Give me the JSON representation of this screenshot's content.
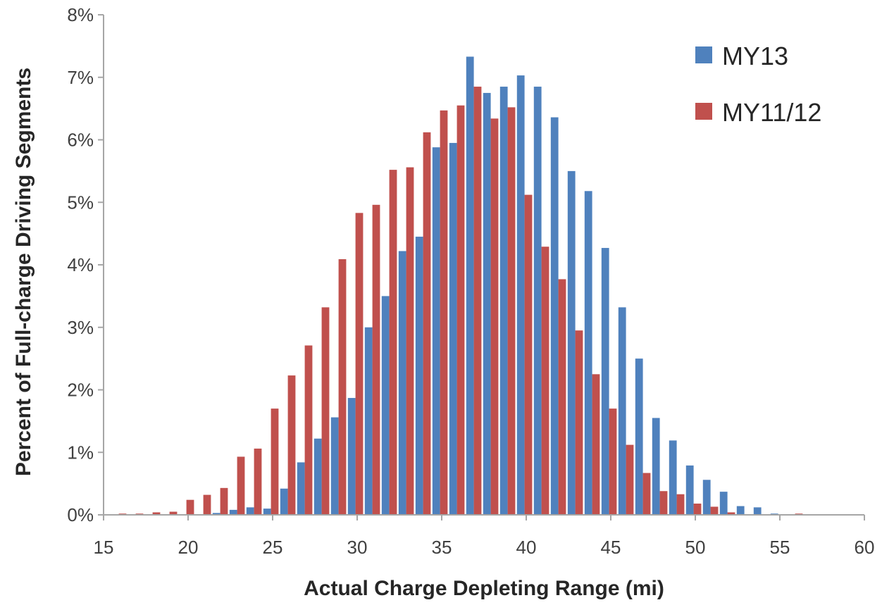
{
  "chart_data": {
    "type": "bar",
    "title": "",
    "xlabel": "Actual Charge Depleting Range (mi)",
    "ylabel": "Percent of Full-charge Driving Segments",
    "xlim": [
      15,
      60
    ],
    "ylim": [
      0,
      8
    ],
    "x_ticks": [
      15,
      20,
      25,
      30,
      35,
      40,
      45,
      50,
      55,
      60
    ],
    "y_ticks": [
      0,
      1,
      2,
      3,
      4,
      5,
      6,
      7,
      8
    ],
    "y_tick_labels": [
      "0%",
      "1%",
      "2%",
      "3%",
      "4%",
      "5%",
      "6%",
      "7%",
      "8%"
    ],
    "value_unit": "%",
    "bin_width": 1,
    "grid": false,
    "legend_position": "top-right",
    "x": [
      16,
      17,
      18,
      19,
      20,
      21,
      22,
      23,
      24,
      25,
      26,
      27,
      28,
      29,
      30,
      31,
      32,
      33,
      34,
      35,
      36,
      37,
      38,
      39,
      40,
      41,
      42,
      43,
      44,
      45,
      46,
      47,
      48,
      49,
      50,
      51,
      52,
      53,
      54,
      55,
      56
    ],
    "series": [
      {
        "name": "MY13",
        "color": "#4f81bd",
        "values": [
          0,
          0,
          0,
          0,
          0,
          0,
          0.03,
          0.08,
          0.12,
          0.1,
          0.42,
          0.84,
          1.22,
          1.56,
          1.87,
          3.0,
          3.5,
          4.22,
          4.45,
          5.88,
          5.95,
          7.33,
          6.75,
          6.85,
          7.03,
          6.85,
          6.36,
          5.5,
          5.18,
          4.27,
          3.32,
          2.5,
          1.55,
          1.19,
          0.79,
          0.56,
          0.37,
          0.14,
          0.12,
          0.02,
          0
        ]
      },
      {
        "name": "MY11/12",
        "color": "#c0504d",
        "values": [
          0.02,
          0.02,
          0.04,
          0.05,
          0.24,
          0.32,
          0.43,
          0.93,
          1.06,
          1.7,
          2.23,
          2.71,
          3.32,
          4.09,
          4.83,
          4.96,
          5.52,
          5.56,
          6.12,
          6.47,
          6.55,
          6.85,
          6.34,
          6.52,
          5.12,
          4.29,
          3.77,
          2.95,
          2.25,
          1.7,
          1.12,
          0.67,
          0.38,
          0.33,
          0.18,
          0.13,
          0.04,
          0.01,
          0,
          0,
          0.02
        ]
      }
    ]
  }
}
